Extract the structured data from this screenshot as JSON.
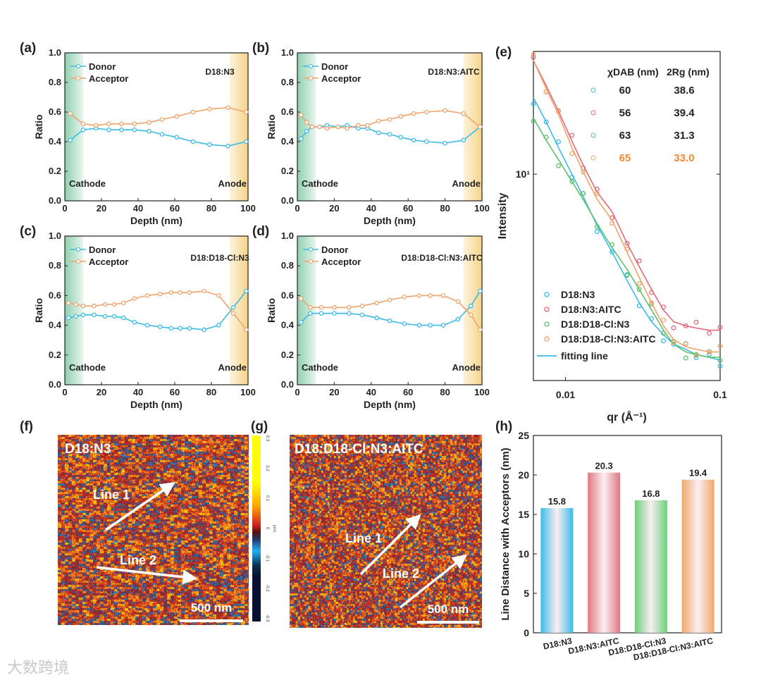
{
  "chart_data": [
    {
      "type": "line",
      "panel": "(a)",
      "sample": "D18:N3",
      "xlabel": "Depth (nm)",
      "ylabel": "Ratio",
      "xlim": [
        0,
        100
      ],
      "ylim": [
        0,
        1
      ],
      "xticks": [
        "0",
        "20",
        "40",
        "60",
        "80",
        "100"
      ],
      "yticks": [
        "0.0",
        "0.2",
        "0.4",
        "0.6",
        "0.8",
        "1.0"
      ],
      "regions": {
        "left": "Cathode",
        "right": "Anode"
      },
      "x": [
        3,
        10,
        17,
        24,
        31,
        38,
        46,
        53,
        61,
        70,
        79,
        89,
        99
      ],
      "series": [
        {
          "name": "Donor",
          "color": "#3bbbe8",
          "values": [
            0.41,
            0.48,
            0.49,
            0.48,
            0.48,
            0.48,
            0.47,
            0.45,
            0.43,
            0.4,
            0.38,
            0.37,
            0.4
          ]
        },
        {
          "name": "Acceptor",
          "color": "#f0a36c",
          "values": [
            0.59,
            0.52,
            0.51,
            0.52,
            0.52,
            0.52,
            0.53,
            0.55,
            0.57,
            0.6,
            0.62,
            0.63,
            0.6
          ]
        }
      ]
    },
    {
      "type": "line",
      "panel": "(b)",
      "sample": "D18:N3:AITC",
      "xlabel": "Depth (nm)",
      "ylabel": "Ratio",
      "xlim": [
        0,
        100
      ],
      "ylim": [
        0,
        1
      ],
      "xticks": [
        "0",
        "20",
        "40",
        "60",
        "80",
        "100"
      ],
      "yticks": [
        "0.0",
        "0.2",
        "0.4",
        "0.6",
        "0.8",
        "1.0"
      ],
      "regions": {
        "left": "Cathode",
        "right": "Anode"
      },
      "x": [
        2,
        5,
        8,
        12,
        16,
        22,
        27,
        33,
        38,
        44,
        50,
        56,
        63,
        70,
        80,
        90,
        99
      ],
      "series": [
        {
          "name": "Donor",
          "color": "#3bbbe8",
          "values": [
            0.42,
            0.47,
            0.5,
            0.5,
            0.51,
            0.5,
            0.51,
            0.49,
            0.49,
            0.46,
            0.45,
            0.43,
            0.41,
            0.4,
            0.39,
            0.41,
            0.5
          ]
        },
        {
          "name": "Acceptor",
          "color": "#f0a36c",
          "values": [
            0.58,
            0.53,
            0.5,
            0.5,
            0.49,
            0.5,
            0.49,
            0.51,
            0.51,
            0.54,
            0.55,
            0.57,
            0.59,
            0.6,
            0.61,
            0.59,
            0.5
          ]
        }
      ]
    },
    {
      "type": "line",
      "panel": "(c)",
      "sample": "D18:D18-Cl:N3",
      "xlabel": "Depth (nm)",
      "ylabel": "Ratio",
      "xlim": [
        0,
        100
      ],
      "ylim": [
        0,
        1
      ],
      "xticks": [
        "0",
        "20",
        "40",
        "60",
        "80",
        "100"
      ],
      "yticks": [
        "0.0",
        "0.2",
        "0.4",
        "0.6",
        "0.8",
        "1.0"
      ],
      "regions": {
        "left": "Cathode",
        "right": "Anode"
      },
      "x": [
        2,
        6,
        10,
        16,
        22,
        27,
        32,
        38,
        45,
        52,
        58,
        63,
        68,
        76,
        84,
        92,
        99
      ],
      "series": [
        {
          "name": "Donor",
          "color": "#3bbbe8",
          "values": [
            0.45,
            0.46,
            0.47,
            0.47,
            0.46,
            0.46,
            0.45,
            0.42,
            0.4,
            0.39,
            0.38,
            0.38,
            0.38,
            0.37,
            0.4,
            0.52,
            0.63
          ]
        },
        {
          "name": "Acceptor",
          "color": "#f0a36c",
          "values": [
            0.55,
            0.54,
            0.53,
            0.53,
            0.54,
            0.54,
            0.55,
            0.58,
            0.6,
            0.61,
            0.62,
            0.62,
            0.62,
            0.63,
            0.6,
            0.48,
            0.37
          ]
        }
      ]
    },
    {
      "type": "line",
      "panel": "(d)",
      "sample": "D18:D18-Cl:N3:AITC",
      "xlabel": "Depth (nm)",
      "ylabel": "Ratio",
      "xlim": [
        0,
        100
      ],
      "ylim": [
        0,
        1
      ],
      "xticks": [
        "0",
        "20",
        "40",
        "60",
        "80",
        "100"
      ],
      "yticks": [
        "0.0",
        "0.2",
        "0.4",
        "0.6",
        "0.8",
        "1.0"
      ],
      "regions": {
        "left": "Cathode",
        "right": "Anode"
      },
      "x": [
        2,
        7,
        13,
        20,
        28,
        35,
        43,
        50,
        58,
        66,
        72,
        79,
        87,
        94,
        99
      ],
      "series": [
        {
          "name": "Donor",
          "color": "#3bbbe8",
          "values": [
            0.42,
            0.48,
            0.48,
            0.48,
            0.48,
            0.47,
            0.45,
            0.43,
            0.41,
            0.4,
            0.4,
            0.4,
            0.44,
            0.53,
            0.63
          ]
        },
        {
          "name": "Acceptor",
          "color": "#f0a36c",
          "values": [
            0.58,
            0.52,
            0.52,
            0.52,
            0.52,
            0.53,
            0.55,
            0.57,
            0.59,
            0.6,
            0.6,
            0.6,
            0.56,
            0.47,
            0.37
          ]
        }
      ]
    },
    {
      "type": "scatter",
      "panel": "(e)",
      "scale": "log-log",
      "xlabel": "qr (Å⁻¹)",
      "ylabel": "Intensity",
      "xlim": [
        0.0062,
        0.1
      ],
      "ylim": [
        1.77,
        28
      ],
      "xticks": [
        {
          "v": 0.01,
          "label": "0.01"
        },
        {
          "v": 0.1,
          "label": "0.1"
        }
      ],
      "yticks": [
        {
          "v": 10,
          "label": "10¹"
        }
      ],
      "x": [
        0.0062,
        0.0075,
        0.009,
        0.011,
        0.013,
        0.016,
        0.02,
        0.025,
        0.03,
        0.036,
        0.043,
        0.05,
        0.06,
        0.07,
        0.085,
        0.1
      ],
      "series": [
        {
          "name": "D18:N3",
          "color": "#3bbbe8",
          "values": [
            19,
            15.5,
            12.5,
            10,
            8.3,
            6.5,
            5.2,
            4.1,
            3.4,
            2.9,
            2.6,
            2.4,
            2.3,
            2.2,
            2.15,
            2.1
          ]
        },
        {
          "name": "D18:N3:AITC",
          "color": "#e06a78",
          "values": [
            26,
            21,
            17,
            13.2,
            10.8,
            8.6,
            7.3,
            5.6,
            4.6,
            3.8,
            3.2,
            2.9,
            2.8,
            2.75,
            2.7,
            2.7
          ]
        },
        {
          "name": "D18:D18-Cl:N3",
          "color": "#5cc26a",
          "values": [
            16,
            13.3,
            11.3,
            9.4,
            8.1,
            6.6,
            5.4,
            4.5,
            3.8,
            3.2,
            2.7,
            2.4,
            2.25,
            2.2,
            2.15,
            2.15
          ]
        },
        {
          "name": "D18:D18-Cl:N3:AITC",
          "color": "#f0a36c",
          "values": [
            26,
            20.5,
            16.5,
            12.5,
            10.2,
            8.1,
            6.8,
            5.2,
            4.2,
            3.4,
            2.8,
            2.5,
            2.35,
            2.3,
            2.25,
            2.25
          ]
        }
      ],
      "fit_legend": "fitting line",
      "table": {
        "headers": [
          "χDAB (nm)",
          "2Rg (nm)"
        ],
        "rows": [
          {
            "color": "#3bbbe8",
            "xdab": "60",
            "rg": "38.6",
            "text_color": "#222222"
          },
          {
            "color": "#e06a78",
            "xdab": "56",
            "rg": "39.4",
            "text_color": "#222222"
          },
          {
            "color": "#5cc26a",
            "xdab": "63",
            "rg": "31.3",
            "text_color": "#222222"
          },
          {
            "color": "#f0a36c",
            "xdab": "65",
            "rg": "33.0",
            "text_color": "#f08a30"
          }
        ]
      }
    },
    {
      "type": "bar",
      "panel": "(h)",
      "xlabel": "",
      "ylabel": "Line Distance with Acceptors (nm)",
      "ylim": [
        0,
        25
      ],
      "yticks": [
        "0",
        "5",
        "10",
        "15",
        "20",
        "25"
      ],
      "categories": [
        "D18:N3",
        "D18:N3:AITC",
        "D18:D18-Cl:N3",
        "D18:D18-Cl:N3:AITC"
      ],
      "values": [
        15.8,
        20.3,
        16.8,
        19.4
      ],
      "value_labels": [
        "15.8",
        "20.3",
        "16.8",
        "19.4"
      ],
      "colors": [
        "#3bbbe8",
        "#e07882",
        "#6ccf7c",
        "#f0a86c"
      ]
    }
  ],
  "afm_images": [
    {
      "panel": "(f)",
      "sample": "D18:N3",
      "lines": [
        "Line 1",
        "Line 2"
      ],
      "scale_bar": "500 nm"
    },
    {
      "panel": "(g)",
      "sample": "D18:D18-Cl:N3:AITC",
      "lines": [
        "Line 1",
        "Line 2"
      ],
      "scale_bar": "500 nm"
    }
  ],
  "colorbar": {
    "ticks": [
      "0.3",
      "0.2",
      "0.1",
      "0",
      "-0.1",
      "-0.2",
      "-0.3"
    ],
    "unit": "(mV)"
  },
  "watermark": "大数跨境"
}
